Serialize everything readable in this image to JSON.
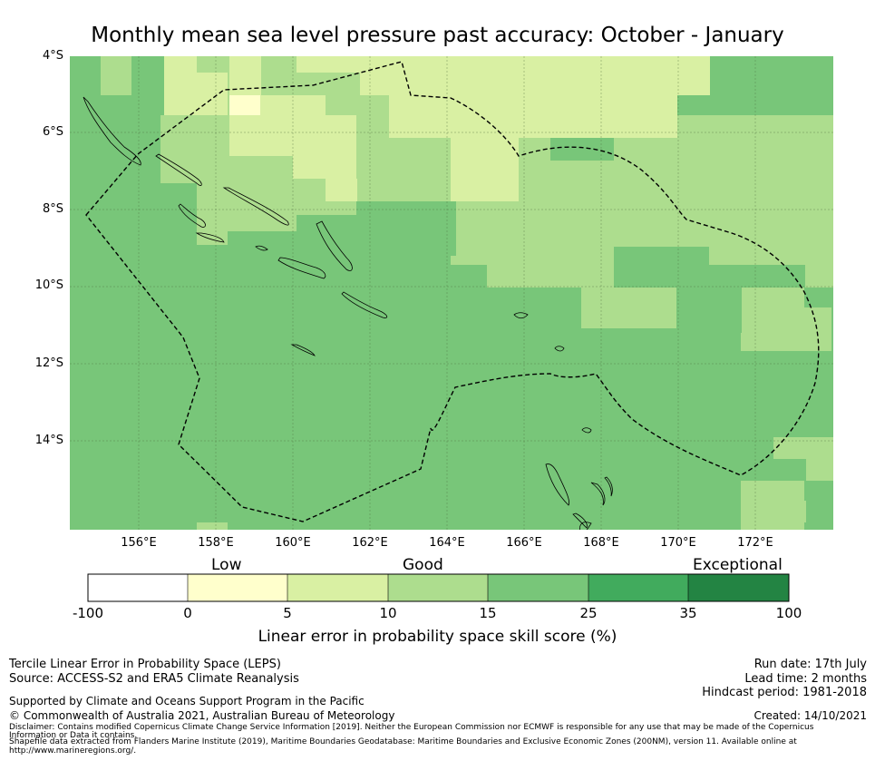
{
  "title": "Monthly mean sea level pressure past accuracy: October - January",
  "lat_labels": [
    "4°S",
    "6°S",
    "8°S",
    "10°S",
    "12°S",
    "14°S"
  ],
  "lon_labels": [
    "156°E",
    "158°E",
    "160°E",
    "162°E",
    "164°E",
    "166°E",
    "168°E",
    "170°E",
    "172°E"
  ],
  "colorbar": {
    "categories": [
      "Low",
      "Good",
      "Exceptional"
    ],
    "ticks": [
      "-100",
      "0",
      "5",
      "10",
      "15",
      "25",
      "35",
      "100"
    ],
    "colors": [
      "#ffffff",
      "#ffffcc",
      "#d9f0a3",
      "#addd8e",
      "#78c679",
      "#41ab5d",
      "#238443"
    ],
    "label": "Linear error in probability space skill score (%)"
  },
  "palette": {
    "c1": "#ffffcc",
    "c2": "#d9f0a3",
    "c3": "#addd8e",
    "c4": "#78c679",
    "coast": "#000000",
    "eez": "#000000"
  },
  "footer": {
    "left1": "Tercile Linear Error in Probability Space (LEPS)",
    "left2": "Source: ACCESS-S2 and ERA5 Climate Reanalysis",
    "support": "Supported by Climate and Oceans Support Program in the Pacific",
    "copyright": "© Commonwealth of Australia 2021, Australian Bureau of Meteorology",
    "disclaimer1": "Disclaimer: Contains modified Copernicus Climate Change Service Information [2019]. Neither the European Commission nor ECMWF is responsible for any use that may be made of the Copernicus",
    "disclaimer2": "Information or Data it contains.",
    "shapefile1": "Shapefile data extracted from Flanders Marine Institute (2019), Maritime Boundaries Geodatabase: Maritime Boundaries and Exclusive Economic Zones (200NM), version 11. Available online at",
    "shapefile2": "http://www.marineregions.org/.",
    "run_date": "Run date: 17th July",
    "lead_time": "Lead time: 2 months",
    "hindcast": "Hindcast period: 1981-2018",
    "created": "Created: 14/10/2021"
  }
}
